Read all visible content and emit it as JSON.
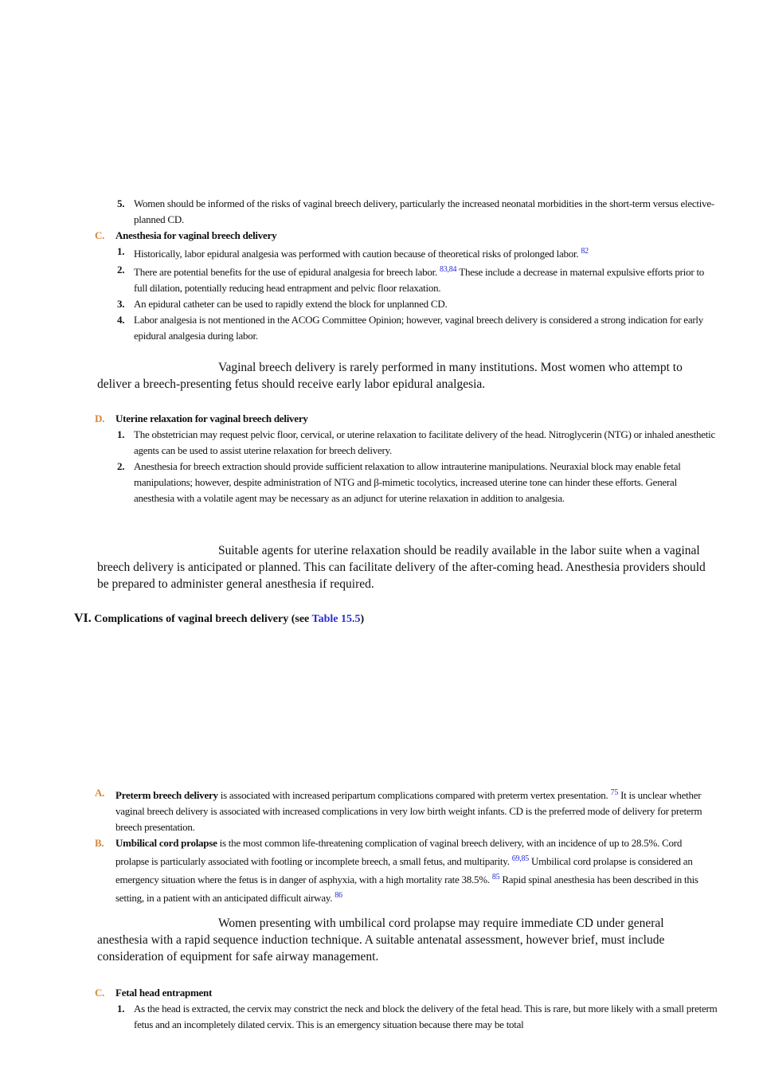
{
  "blocks": [
    {
      "items": [
        {
          "number": "5.",
          "content": [
            {
              "text": "Women should be informed of the risks of vaginal breech delivery, particularly the increased neonatal morbidities in the short-term versus elective-planned CD."
            }
          ]
        }
      ]
    },
    {
      "letter": "C.",
      "heading": "Anesthesia for vaginal breech delivery",
      "items": [
        {
          "number": "1.",
          "content": [
            {
              "text": "Historically, labor epidural analgesia was performed with caution because of theoretical risks of prolonged labor."
            },
            {
              "ref": "82"
            }
          ]
        },
        {
          "number": "2.",
          "content": [
            {
              "text": "There are potential benefits for the use of epidural analgesia for breech labor."
            },
            {
              "ref": "83,84"
            },
            {
              "text": "These include a decrease in maternal expulsive efforts prior to full dilation, potentially reducing head entrapment and pelvic floor relaxation."
            }
          ]
        },
        {
          "number": "3.",
          "content": [
            {
              "text": "An epidural catheter can be used to rapidly extend the block for unplanned CD."
            }
          ]
        },
        {
          "number": "4.",
          "content": [
            {
              "text": "Labor analgesia is not mentioned in the ACOG Committee Opinion; however, vaginal breech delivery is considered a strong indication for early epidural analgesia during labor."
            }
          ]
        }
      ]
    }
  ],
  "callout_1": "Vaginal breech delivery is rarely performed in many institutions. Most women who attempt to deliver a breech-presenting fetus should receive early labor epidural analgesia.",
  "section_d": {
    "letter": "D.",
    "heading": "Uterine relaxation for vaginal breech delivery",
    "items": [
      {
        "number": "1.",
        "content": [
          {
            "text": "The obstetrician may request pelvic floor, cervical, or uterine relaxation to facilitate delivery of the head. Nitroglycerin (NTG) or inhaled anesthetic agents can be used to assist uterine relaxation for breech delivery."
          }
        ]
      },
      {
        "number": "2.",
        "content": [
          {
            "text": "Anesthesia for breech extraction should provide sufficient relaxation to allow intrauterine manipulations. Neuraxial block may enable fetal manipulations; however, despite administration of NTG and β-mimetic tocolytics, increased uterine tone can hinder these efforts. General anesthesia with a volatile agent may be necessary as an adjunct for uterine relaxation in addition to analgesia."
          }
        ]
      }
    ]
  },
  "callout_2": "Suitable agents for uterine relaxation should be readily available in the labor suite when a vaginal breech delivery is anticipated or planned. This can facilitate delivery of the after-coming head. Anesthesia providers should be prepared to administer general anesthesia if required.",
  "section_vi": {
    "number": "VI.",
    "heading": "Complications of vaginal breech delivery (see",
    "link": "Table 15.5",
    "heading_end": ")"
  },
  "section_vi_items": [
    {
      "letter": "A.",
      "lead": "Preterm breech delivery",
      "content": [
        {
          "text": "is associated with increased peripartum complications compared with preterm vertex presentation."
        },
        {
          "ref": "75"
        },
        {
          "text": "It is unclear whether vaginal breech delivery is associated with increased complications in very low birth weight infants. CD is the preferred mode of delivery for preterm breech presentation."
        }
      ]
    },
    {
      "letter": "B.",
      "lead": "Umbilical cord prolapse",
      "content": [
        {
          "text": "is the most common life-threatening complication of vaginal breech delivery, with an incidence of up to 28.5%. Cord prolapse is particularly associated with footling or incomplete breech, a small fetus, and multiparity."
        },
        {
          "ref": "69,85"
        },
        {
          "text": "Umbilical cord prolapse is considered an emergency situation where the fetus is in danger of asphyxia, with a high mortality rate 38.5%."
        },
        {
          "ref": "85"
        },
        {
          "text": "Rapid spinal anesthesia has been described in this setting, in a patient with an anticipated difficult airway."
        },
        {
          "ref": "86"
        }
      ]
    }
  ],
  "callout_3": "Women presenting with umbilical cord prolapse may require immediate CD under general anesthesia with a rapid sequence induction technique. A suitable antenatal assessment, however brief, must include consideration of equipment for safe airway management.",
  "section_c2": {
    "letter": "C.",
    "heading": "Fetal head entrapment",
    "items": [
      {
        "number": "1.",
        "content": [
          {
            "text": "As the head is extracted, the cervix may constrict the neck and block the delivery of the fetal head. This is rare, but more likely with a small preterm fetus and an incompletely dilated cervix. This is an emergency situation because there may be total"
          }
        ]
      }
    ]
  }
}
